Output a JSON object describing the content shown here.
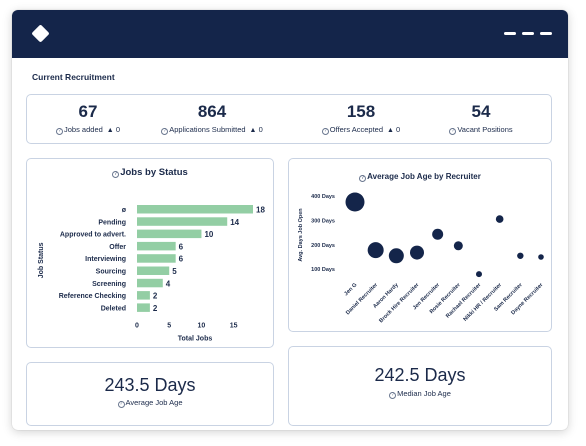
{
  "section_title": "Current Recruitment",
  "kpis": [
    {
      "value": "67",
      "label": "Jobs added",
      "delta": "0"
    },
    {
      "value": "864",
      "label": "Applications Submitted",
      "delta": "0"
    },
    {
      "value": "158",
      "label": "Offers Accepted",
      "delta": "0"
    },
    {
      "value": "54",
      "label": "Vacant Positions",
      "delta": ""
    }
  ],
  "delta_symbol": "▲",
  "help_symbol": "?",
  "jobs_by_status": {
    "title": "Jobs by Status",
    "chart_data": {
      "type": "bar",
      "orientation": "horizontal",
      "categories": [
        "ø",
        "Pending",
        "Approved to advert.",
        "Offer",
        "Interviewing",
        "Sourcing",
        "Screening",
        "Reference Checking",
        "Deleted"
      ],
      "values": [
        18,
        14,
        10,
        6,
        6,
        5,
        4,
        2,
        2
      ],
      "xlabel": "Total Jobs",
      "ylabel": "Job Status",
      "xticks": [
        0,
        5,
        10,
        15
      ],
      "xlim": [
        0,
        18
      ],
      "bar_color": "#93cea4"
    }
  },
  "avg_job_age_by_recruiter": {
    "title": "Average Job Age by Recruiter",
    "chart_data": {
      "type": "scatter",
      "categories": [
        "Jen G",
        "Daniel Recruiter",
        "Aaron Hardy",
        "Brock Hire Recruiter",
        "Jen Recruiter",
        "Rosie Recruiter",
        "Rachael Recruiter",
        "Nikki HR / Recruiter",
        "Sam Recruiter",
        "Dayne Recruiter"
      ],
      "y": [
        375,
        178,
        155,
        168,
        243,
        196,
        80,
        305,
        155,
        150
      ],
      "size": [
        9.5,
        8,
        7.5,
        7,
        5.5,
        4.5,
        3,
        3.8,
        3.2,
        2.8
      ],
      "ylabel": "Avg. Days Job Open",
      "yticks": [
        "100 Days",
        "200 Days",
        "300 Days",
        "400 Days"
      ],
      "ytick_values": [
        100,
        200,
        300,
        400
      ],
      "ylim": [
        60,
        420
      ],
      "point_color": "#14254a"
    }
  },
  "average_job_age": {
    "value": "243.5 Days",
    "label": "Average Job Age"
  },
  "median_job_age": {
    "value": "242.5 Days",
    "label": "Median Job Age"
  },
  "colors": {
    "header": "#14254a",
    "accent": "#93cea4",
    "border": "#c9d3e3"
  }
}
